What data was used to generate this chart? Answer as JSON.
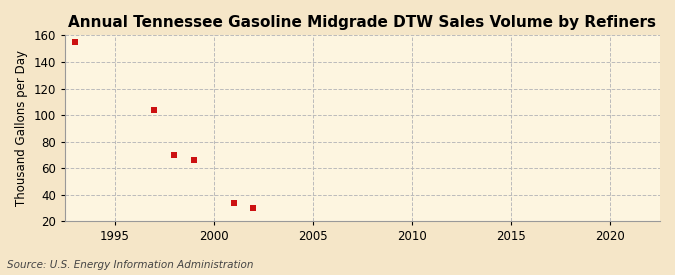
{
  "title": "Annual Tennessee Gasoline Midgrade DTW Sales Volume by Refiners",
  "ylabel": "Thousand Gallons per Day",
  "source": "Source: U.S. Energy Information Administration",
  "background_color": "#f5e6c8",
  "plot_background_color": "#fdf5e0",
  "x_data": [
    1993,
    1997,
    1998,
    1999,
    2001,
    2002
  ],
  "y_data": [
    155,
    104,
    70,
    66,
    34,
    30
  ],
  "marker_color": "#cc1111",
  "marker": "s",
  "marker_size": 4,
  "xlim": [
    1992.5,
    2022.5
  ],
  "ylim": [
    20,
    160
  ],
  "xticks": [
    1995,
    2000,
    2005,
    2010,
    2015,
    2020
  ],
  "yticks": [
    20,
    40,
    60,
    80,
    100,
    120,
    140,
    160
  ],
  "grid_color": "#bbbbbb",
  "grid_style": "--",
  "title_fontsize": 11,
  "label_fontsize": 8.5,
  "tick_fontsize": 8.5,
  "source_fontsize": 7.5
}
